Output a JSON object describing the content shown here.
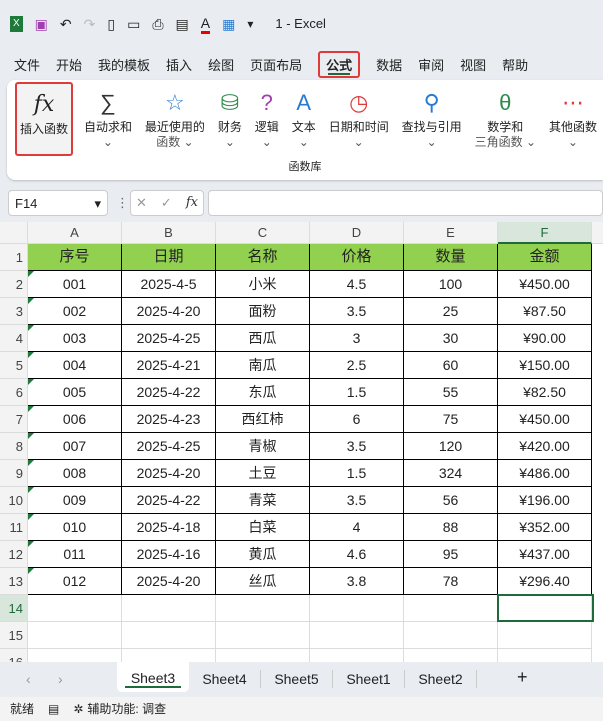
{
  "window": {
    "title": "1  -  Excel"
  },
  "menu": [
    "文件",
    "开始",
    "我的模板",
    "插入",
    "绘图",
    "页面布局",
    "公式",
    "数据",
    "审阅",
    "视图",
    "帮助"
  ],
  "active_menu": "公式",
  "ribbon": {
    "insert_function": "插入函数",
    "buttons": [
      {
        "icon": "∑",
        "l1": "自动求和",
        "l2": "⌄"
      },
      {
        "icon": "☆",
        "l1": "最近使用的",
        "l2": "函数 ⌄"
      },
      {
        "icon": "⛁",
        "l1": "财务",
        "l2": "⌄"
      },
      {
        "icon": "?",
        "l1": "逻辑",
        "l2": "⌄"
      },
      {
        "icon": "A",
        "l1": "文本",
        "l2": "⌄"
      },
      {
        "icon": "◷",
        "l1": "日期和时间",
        "l2": "⌄"
      },
      {
        "icon": "⚲",
        "l1": "查找与引用",
        "l2": "⌄"
      },
      {
        "icon": "θ",
        "l1": "数学和",
        "l2": "三角函数 ⌄"
      },
      {
        "icon": "⋯",
        "l1": "其他函数",
        "l2": "⌄"
      }
    ],
    "group_label": "函数库"
  },
  "formula_bar": {
    "name_box": "F14",
    "fx": "fx",
    "value": ""
  },
  "columns": [
    "A",
    "B",
    "C",
    "D",
    "E",
    "F"
  ],
  "selected_column": "F",
  "selected_row": 14,
  "headers": [
    "序号",
    "日期",
    "名称",
    "价格",
    "数量",
    "金额"
  ],
  "rows": [
    [
      "001",
      "2025-4-5",
      "小米",
      "4.5",
      "100",
      "¥450.00"
    ],
    [
      "002",
      "2025-4-20",
      "面粉",
      "3.5",
      "25",
      "¥87.50"
    ],
    [
      "003",
      "2025-4-25",
      "西瓜",
      "3",
      "30",
      "¥90.00"
    ],
    [
      "004",
      "2025-4-21",
      "南瓜",
      "2.5",
      "60",
      "¥150.00"
    ],
    [
      "005",
      "2025-4-22",
      "东瓜",
      "1.5",
      "55",
      "¥82.50"
    ],
    [
      "006",
      "2025-4-23",
      "西红柿",
      "6",
      "75",
      "¥450.00"
    ],
    [
      "007",
      "2025-4-25",
      "青椒",
      "3.5",
      "120",
      "¥420.00"
    ],
    [
      "008",
      "2025-4-20",
      "土豆",
      "1.5",
      "324",
      "¥486.00"
    ],
    [
      "009",
      "2025-4-22",
      "青菜",
      "3.5",
      "56",
      "¥196.00"
    ],
    [
      "010",
      "2025-4-18",
      "白菜",
      "4",
      "88",
      "¥352.00"
    ],
    [
      "011",
      "2025-4-16",
      "黄瓜",
      "4.6",
      "95",
      "¥437.00"
    ],
    [
      "012",
      "2025-4-20",
      "丝瓜",
      "3.8",
      "78",
      "¥296.40"
    ]
  ],
  "sheets": [
    "Sheet3",
    "Sheet4",
    "Sheet5",
    "Sheet1",
    "Sheet2"
  ],
  "active_sheet": "Sheet3",
  "status": {
    "ready": "就绪",
    "accessibility": "辅助功能: 调查"
  },
  "colors": {
    "header_fill": "#92d050",
    "accent": "#1e6b3a",
    "highlight": "#e03b3b"
  }
}
